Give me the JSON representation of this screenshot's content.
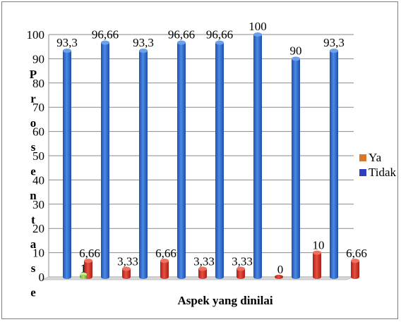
{
  "chart_data": {
    "type": "bar",
    "title": "",
    "xlabel": "Aspek yang dinilai",
    "ylabel": "Prosentase",
    "ylim": [
      0,
      100
    ],
    "yticks": [
      "0",
      "10",
      "20",
      "30",
      "40",
      "50",
      "60",
      "70",
      "80",
      "90",
      "100"
    ],
    "grid": true,
    "legend_position": "right",
    "categories": [
      "",
      "",
      "",
      "",
      "",
      "",
      "",
      ""
    ],
    "series": [
      {
        "name": "Tidak",
        "legend_color": "#2f3fbf",
        "bar_color": "#2f6fd8",
        "values": [
          93.3,
          96.66,
          93.3,
          96.66,
          96.66,
          100,
          90,
          93.3
        ],
        "labels": [
          "93,3",
          "96,66",
          "93,3",
          "96,66",
          "96,66",
          "100",
          "90",
          "93,3"
        ]
      },
      {
        "name": "Ya",
        "legend_color": "#d8772a",
        "bar_color": "#d63a2e",
        "values": [
          6.66,
          3.33,
          6.66,
          3.33,
          3.33,
          0,
          10,
          6.66
        ],
        "labels": [
          "6,66",
          "3,33",
          "6,66",
          "3,33",
          "3,33",
          "0",
          "10",
          "6,66"
        ]
      }
    ],
    "annotation": {
      "label": "1",
      "value": 1,
      "color": "#8fd14f",
      "category_index": 0
    }
  }
}
